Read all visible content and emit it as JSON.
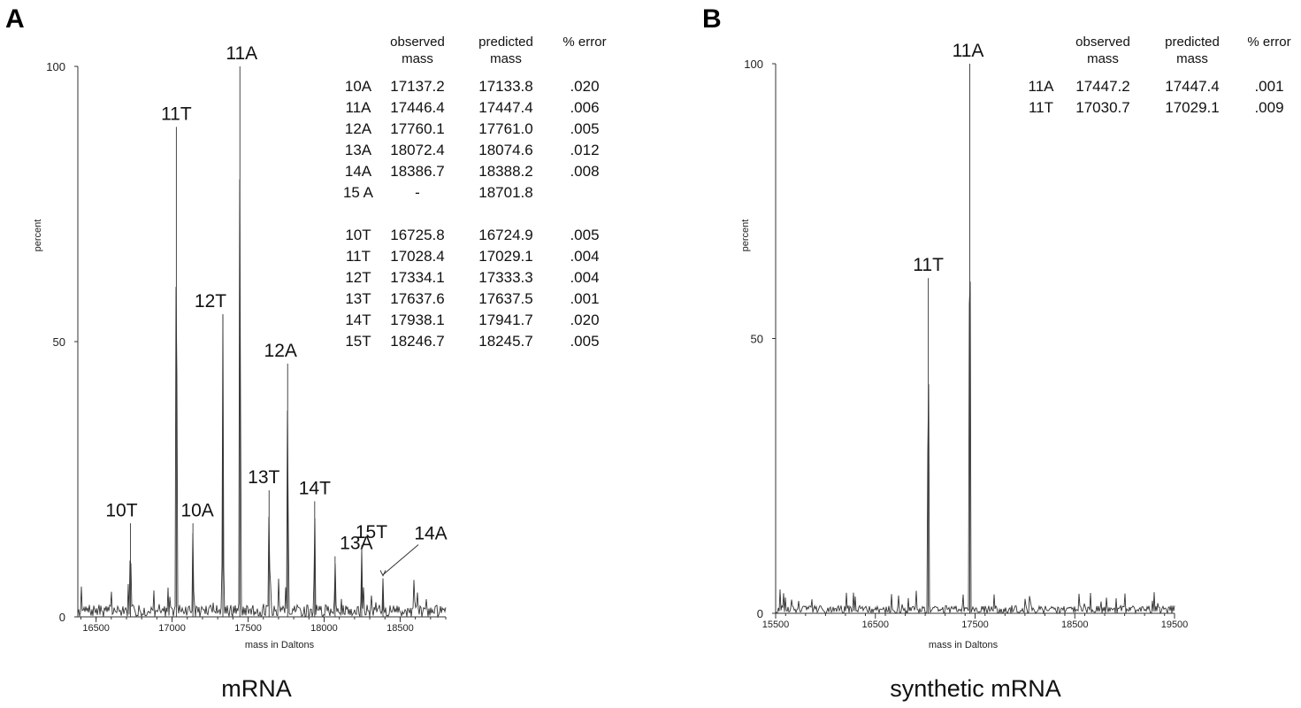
{
  "chart_data": [
    {
      "panel": "A",
      "type": "line",
      "caption": "mRNA",
      "xlabel": "mass in Daltons",
      "ylabel": "percent",
      "xlim": [
        16380,
        18800
      ],
      "ylim": [
        0,
        100
      ],
      "x_ticks": [
        16500,
        17000,
        17500,
        18000,
        18500
      ],
      "y_ticks": [
        0,
        50,
        100
      ],
      "peaks": [
        {
          "label": "10T",
          "x": 16726,
          "y": 17
        },
        {
          "label": "11T",
          "x": 17028,
          "y": 89
        },
        {
          "label": "10A",
          "x": 17137,
          "y": 17
        },
        {
          "label": "12T",
          "x": 17334,
          "y": 55
        },
        {
          "label": "11A",
          "x": 17446,
          "y": 100
        },
        {
          "label": "13T",
          "x": 17638,
          "y": 23
        },
        {
          "label": "12A",
          "x": 17760,
          "y": 46
        },
        {
          "label": "14T",
          "x": 17938,
          "y": 21
        },
        {
          "label": "13A",
          "x": 18072,
          "y": 11
        },
        {
          "label": "15T",
          "x": 18247,
          "y": 13
        },
        {
          "label": "14A",
          "x": 18387,
          "y": 7
        }
      ],
      "table": {
        "headers": [
          [
            "",
            ""
          ],
          [
            "observed",
            "mass"
          ],
          [
            "predicted",
            "mass"
          ],
          [
            "% error",
            ""
          ]
        ],
        "rows": [
          [
            "10A",
            "17137.2",
            "17133.8",
            ".020"
          ],
          [
            "11A",
            "17446.4",
            "17447.4",
            ".006"
          ],
          [
            "12A",
            "17760.1",
            "17761.0",
            ".005"
          ],
          [
            "13A",
            "18072.4",
            "18074.6",
            ".012"
          ],
          [
            "14A",
            "18386.7",
            "18388.2",
            ".008"
          ],
          [
            "15 A",
            "-",
            "18701.8",
            ""
          ],
          [
            "",
            "",
            "",
            ""
          ],
          [
            "10T",
            "16725.8",
            "16724.9",
            ".005"
          ],
          [
            "11T",
            "17028.4",
            "17029.1",
            ".004"
          ],
          [
            "12T",
            "17334.1",
            "17333.3",
            ".004"
          ],
          [
            "13T",
            "17637.6",
            "17637.5",
            ".001"
          ],
          [
            "14T",
            "17938.1",
            "17941.7",
            ".020"
          ],
          [
            "15T",
            "18246.7",
            "18245.7",
            ".005"
          ]
        ]
      }
    },
    {
      "panel": "B",
      "type": "line",
      "caption": "synthetic mRNA",
      "xlabel": "mass in Daltons",
      "ylabel": "percent",
      "xlim": [
        15500,
        19500
      ],
      "ylim": [
        0,
        100
      ],
      "x_ticks": [
        15500,
        16500,
        17500,
        18500,
        19500
      ],
      "y_ticks": [
        0,
        50,
        100
      ],
      "peaks": [
        {
          "label": "11T",
          "x": 17031,
          "y": 61
        },
        {
          "label": "11A",
          "x": 17447,
          "y": 100
        }
      ],
      "table": {
        "headers": [
          [
            "",
            ""
          ],
          [
            "observed",
            "mass"
          ],
          [
            "predicted",
            "mass"
          ],
          [
            "% error",
            ""
          ]
        ],
        "rows": [
          [
            "11A",
            "17447.2",
            "17447.4",
            ".001"
          ],
          [
            "11T",
            "17030.7",
            "17029.1",
            ".009"
          ]
        ]
      }
    }
  ]
}
